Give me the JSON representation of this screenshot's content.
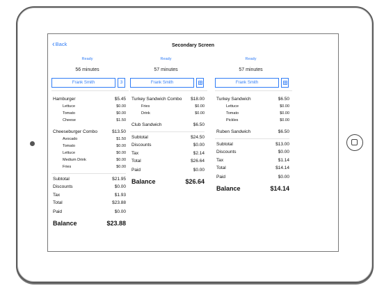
{
  "nav": {
    "back_label": "Back",
    "title": "Secondary Screen"
  },
  "accent_color": "#2f7cf6",
  "columns": [
    {
      "status": "Ready",
      "time": "56 minutes",
      "server": "Frank Smith",
      "guest_count": "3",
      "guest_icon": "",
      "items": [
        {
          "name": "Hamburger",
          "price": "$5.45",
          "mods": [
            {
              "name": "Lettuce",
              "price": "$0.00"
            },
            {
              "name": "Tomato",
              "price": "$0.00"
            },
            {
              "name": "Cheese",
              "price": "$1.50"
            }
          ]
        },
        {
          "name": "Cheeseburger Combo",
          "price": "$13.50",
          "mods": [
            {
              "name": "Avocado",
              "price": "$1.50"
            },
            {
              "name": "Tomato",
              "price": "$0.00"
            },
            {
              "name": "Lettuce",
              "price": "$0.00"
            },
            {
              "name": "Medium Drink",
              "price": "$0.00"
            },
            {
              "name": "Fries",
              "price": "$0.00"
            }
          ]
        }
      ],
      "totals": {
        "subtotal_label": "Subtotal",
        "subtotal": "$21.95",
        "discounts_label": "Discounts",
        "discounts": "$0.00",
        "tax_label": "Tax",
        "tax": "$1.93",
        "total_label": "Total",
        "total": "$23.88",
        "paid_label": "Paid",
        "paid": "$0.00",
        "balance_label": "Balance",
        "balance": "$23.88"
      }
    },
    {
      "status": "Ready",
      "time": "57 minutes",
      "server": "Frank Smith",
      "guest_count": "",
      "guest_icon": "grid-icon",
      "items": [
        {
          "name": "Turkey Sandwich Combo",
          "price": "$18.00",
          "mods": [
            {
              "name": "Fries",
              "price": "$0.00"
            },
            {
              "name": "Drink",
              "price": "$0.00"
            }
          ]
        },
        {
          "name": "Club Sandwich",
          "price": "$6.50",
          "mods": []
        }
      ],
      "totals": {
        "subtotal_label": "Subtotal",
        "subtotal": "$24.50",
        "discounts_label": "Discounts",
        "discounts": "$0.00",
        "tax_label": "Tax",
        "tax": "$2.14",
        "total_label": "Total",
        "total": "$26.64",
        "paid_label": "Paid",
        "paid": "$0.00",
        "balance_label": "Balance",
        "balance": "$26.64"
      }
    },
    {
      "status": "Ready",
      "time": "57 minutes",
      "server": "Frank Smith",
      "guest_count": "",
      "guest_icon": "grid-icon",
      "items": [
        {
          "name": "Turkey Sandwich",
          "price": "$6.50",
          "mods": [
            {
              "name": "Lettuce",
              "price": "$0.00"
            },
            {
              "name": "Tomato",
              "price": "$0.00"
            },
            {
              "name": "Pickles",
              "price": "$0.00"
            }
          ]
        },
        {
          "name": "Ruben Sandwich",
          "price": "$6.50",
          "mods": []
        }
      ],
      "totals": {
        "subtotal_label": "Subtotal",
        "subtotal": "$13.00",
        "discounts_label": "Discounts",
        "discounts": "$0.00",
        "tax_label": "Tax",
        "tax": "$1.14",
        "total_label": "Total",
        "total": "$14.14",
        "paid_label": "Paid",
        "paid": "$0.00",
        "balance_label": "Balance",
        "balance": "$14.14"
      }
    }
  ]
}
